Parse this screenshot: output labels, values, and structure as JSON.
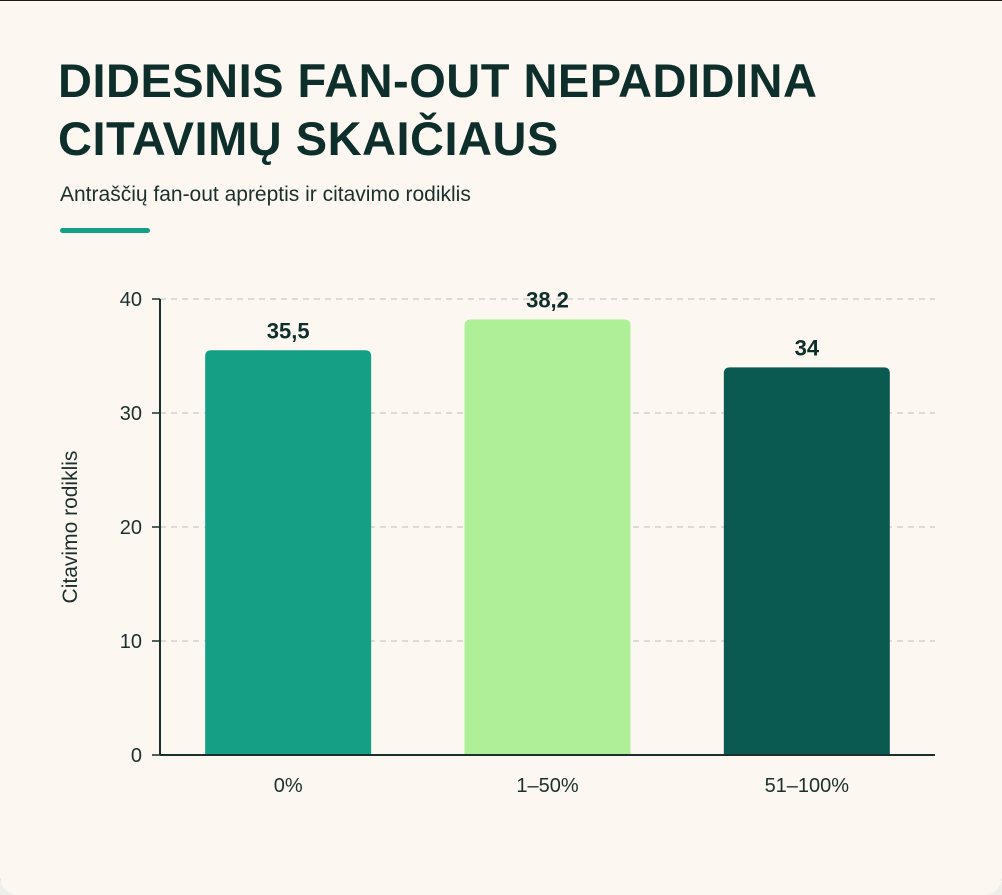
{
  "header": {
    "title": "DIDESNIS FAN-OUT NEPADIDINA CITAVIMŲ SKAIČIAUS",
    "subtitle": "Antraščių fan-out aprėptis ir citavimo rodiklis",
    "accent_color": "#14a085"
  },
  "chart_data": {
    "type": "bar",
    "title": "DIDESNIS FAN-OUT NEPADIDINA CITAVIMŲ SKAIČIAUS",
    "subtitle": "Antraščių fan-out aprėptis ir citavimo rodiklis",
    "categories": [
      "0%",
      "1–50%",
      "51–100%"
    ],
    "values": [
      35.5,
      38.2,
      34
    ],
    "value_labels": [
      "35,5",
      "38,2",
      "34"
    ],
    "bar_colors": [
      "#14a085",
      "#aeef98",
      "#0b5a52"
    ],
    "xlabel": "",
    "ylabel": "Citavimo rodiklis",
    "ylim": [
      0,
      40
    ],
    "yticks": [
      0,
      10,
      20,
      30,
      40
    ],
    "grid": true,
    "legend": "none"
  }
}
